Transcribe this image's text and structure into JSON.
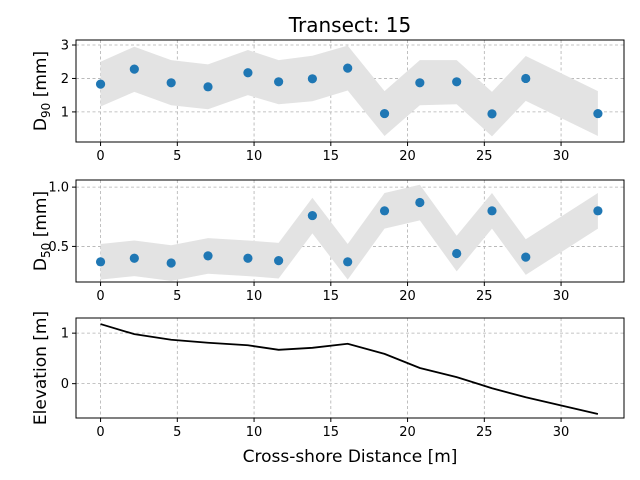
{
  "figure": {
    "title": "Transect: 15",
    "xlabel": "Cross-shore Distance [m]"
  },
  "chart_data": [
    {
      "type": "scatter",
      "ylabel": "D90 [mm]",
      "ylabel_main": "D",
      "ylabel_sub": "90",
      "ylabel_tail": " [mm]",
      "xlim": [
        -1.6,
        34.1
      ],
      "ylim": [
        0.1,
        3.15
      ],
      "xticks": [
        0,
        5,
        10,
        15,
        20,
        25,
        30
      ],
      "yticks": [
        1,
        2,
        3
      ],
      "grid": true,
      "marker_color": "#1f77b4",
      "band_color": "#e3e3e3",
      "x": [
        0,
        2.2,
        4.6,
        7.0,
        9.6,
        11.6,
        13.8,
        16.1,
        18.5,
        20.8,
        23.2,
        25.5,
        27.7,
        32.4
      ],
      "y": [
        1.83,
        2.28,
        1.87,
        1.75,
        2.17,
        1.9,
        1.99,
        2.31,
        0.95,
        1.87,
        1.9,
        0.94,
        2.0,
        0.95
      ],
      "band_upper": [
        2.5,
        2.95,
        2.55,
        2.42,
        2.85,
        2.55,
        2.68,
        2.98,
        1.62,
        2.55,
        2.55,
        1.6,
        2.67,
        1.62
      ],
      "band_lower": [
        1.16,
        1.6,
        1.2,
        1.08,
        1.5,
        1.23,
        1.32,
        1.64,
        0.28,
        1.2,
        1.23,
        0.27,
        1.33,
        0.28
      ]
    },
    {
      "type": "scatter",
      "ylabel": "D50 [mm]",
      "ylabel_main": "D",
      "ylabel_sub": "50",
      "ylabel_tail": " [mm]",
      "xlim": [
        -1.6,
        34.1
      ],
      "ylim": [
        0.2,
        1.06
      ],
      "xticks": [
        0,
        5,
        10,
        15,
        20,
        25,
        30
      ],
      "yticks": [
        0.5,
        1.0
      ],
      "ytick_labels": [
        "0.5",
        "1.0"
      ],
      "grid": true,
      "marker_color": "#1f77b4",
      "band_color": "#e3e3e3",
      "x": [
        0,
        2.2,
        4.6,
        7.0,
        9.6,
        11.6,
        13.8,
        16.1,
        18.5,
        20.8,
        23.2,
        25.5,
        27.7,
        32.4
      ],
      "y": [
        0.37,
        0.4,
        0.36,
        0.42,
        0.4,
        0.38,
        0.76,
        0.37,
        0.8,
        0.87,
        0.44,
        0.8,
        0.41,
        0.8
      ],
      "band_upper": [
        0.52,
        0.55,
        0.51,
        0.57,
        0.55,
        0.53,
        0.91,
        0.52,
        0.95,
        1.02,
        0.59,
        0.95,
        0.56,
        0.95
      ],
      "band_lower": [
        0.22,
        0.25,
        0.21,
        0.27,
        0.25,
        0.23,
        0.61,
        0.22,
        0.65,
        0.72,
        0.29,
        0.65,
        0.26,
        0.65
      ]
    },
    {
      "type": "line",
      "ylabel": "Elevation [m]",
      "xlim": [
        -1.6,
        34.1
      ],
      "ylim": [
        -0.68,
        1.3
      ],
      "xticks": [
        0,
        5,
        10,
        15,
        20,
        25,
        30
      ],
      "yticks": [
        0,
        1
      ],
      "grid": true,
      "line_color": "#000000",
      "x": [
        0,
        2.2,
        4.6,
        7.0,
        9.6,
        11.6,
        13.8,
        16.1,
        18.5,
        20.8,
        23.2,
        25.5,
        27.7,
        32.4
      ],
      "y": [
        1.18,
        0.98,
        0.87,
        0.81,
        0.76,
        0.67,
        0.71,
        0.79,
        0.59,
        0.31,
        0.13,
        -0.09,
        -0.27,
        -0.6
      ]
    }
  ]
}
